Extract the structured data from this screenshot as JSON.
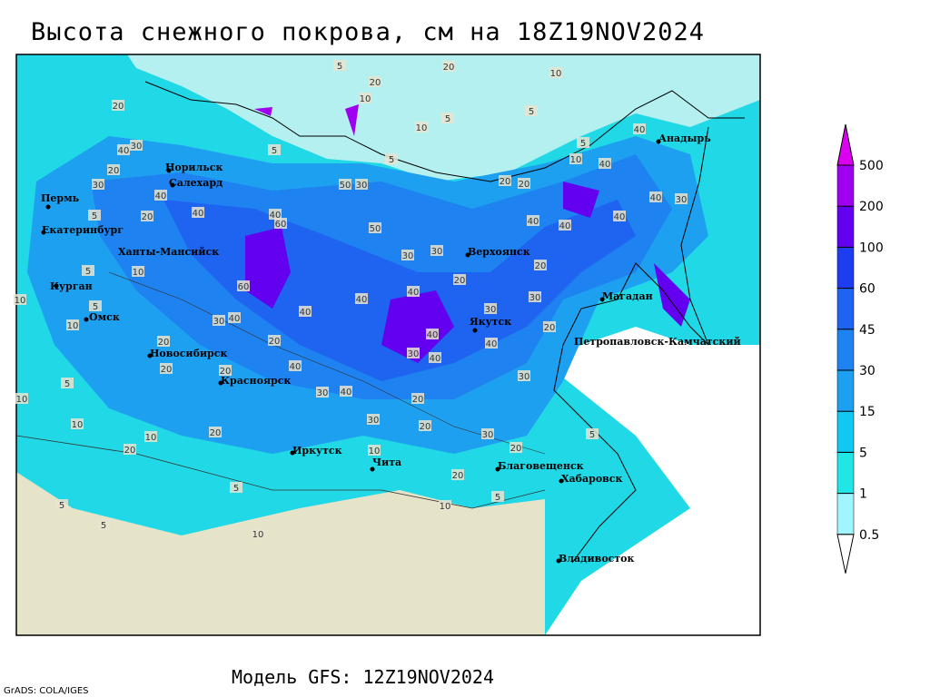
{
  "title": "Высота снежного покрова, см на 18Z19NOV2024",
  "footer": "Модель GFS: 12Z19NOV2024",
  "credit": "GrADS: COLA/IGES",
  "colorbar": {
    "levels": [
      0.5,
      1,
      5,
      15,
      30,
      45,
      60,
      100,
      200,
      500
    ],
    "colors": [
      "#ffffff",
      "#a0f5ff",
      "#20e6e6",
      "#10c8f0",
      "#1ea0f0",
      "#1e82f0",
      "#1e64f0",
      "#1e3cf0",
      "#6400f0",
      "#a000f0",
      "#dc00f0"
    ]
  },
  "cities": [
    "Пермь",
    "Екатеринбург",
    "Курган",
    "Омск",
    "Норильск",
    "Салехард",
    "Ханты-Мансийск",
    "Новосибирск",
    "Красноярск",
    "Иркутск",
    "Чита",
    "Верхоянск",
    "Якутск",
    "Магадан",
    "Петропавловск-Камчатский",
    "Анадырь",
    "Благовещенск",
    "Хабаровск",
    "Владивосток"
  ],
  "contour_labels": [
    20,
    40,
    30,
    20,
    30,
    40,
    5,
    20,
    40,
    40,
    60,
    50,
    30,
    50,
    30,
    30,
    20,
    40,
    40,
    40,
    30,
    30,
    20,
    40,
    40,
    40,
    30,
    30,
    20,
    40,
    40,
    40,
    30,
    40,
    40,
    40,
    10,
    5,
    5,
    5,
    5,
    20,
    10,
    20,
    10,
    5,
    5,
    10,
    20,
    20,
    10,
    5,
    10,
    60,
    40,
    30,
    20,
    20,
    20,
    20,
    40,
    30,
    40,
    20,
    20,
    30,
    30,
    20,
    5,
    20,
    10,
    5,
    10,
    5,
    10,
    5,
    5,
    5,
    10,
    10,
    20,
    10,
    20,
    10,
    5
  ]
}
